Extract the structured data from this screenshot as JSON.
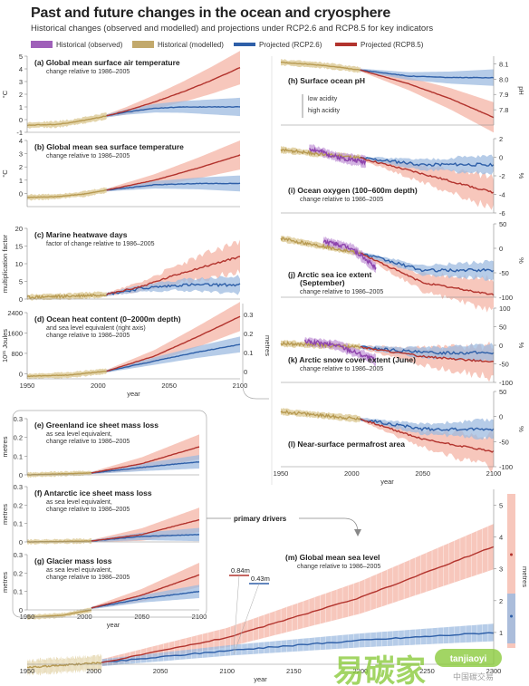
{
  "header": {
    "title": "Past and future changes in the ocean and cryosphere",
    "subtitle": "Historical changes (observed and modelled) and projections under RCP2.6 and RCP8.5 for key indicators"
  },
  "legend": [
    {
      "label": "Historical (observed)",
      "color": "#8e44ad"
    },
    {
      "label": "Historical (modelled)",
      "color": "#b79a52"
    },
    {
      "label": "Projected (RCP2.6)",
      "color": "#2e5fa8"
    },
    {
      "label": "Projected (RCP8.5)",
      "color": "#b2332d"
    }
  ],
  "colors": {
    "obs": "#8e44ad",
    "model": "#b79a52",
    "rcp26": "#2e5fa8",
    "rcp85": "#b2332d",
    "band26": "#9dbbe0",
    "band85": "#f4b4a6",
    "bandModel": "#d9c68d",
    "bandObs": "#c49ad8"
  },
  "labels": {
    "primary_drivers": "primary drivers",
    "val_084": "0.84m",
    "val_043": "0.43m",
    "watermark_cn": "易碳家",
    "watermark_en": "tanjiaoyi",
    "watermark_cn2": "中国碳交易"
  },
  "chart_data": [
    {
      "id": "a",
      "type": "line",
      "title": "(a)  Global mean surface air temperature",
      "subtitle": "change relative to 1986–2005",
      "ylabel": "°C",
      "xlim": [
        1950,
        2100
      ],
      "ylim": [
        -1,
        5
      ],
      "yticks": [
        -1,
        0,
        1,
        2,
        3,
        4,
        5
      ],
      "historical_modelled": {
        "x": [
          1950,
          1960,
          1970,
          1980,
          1990,
          2000,
          2006
        ],
        "y": [
          -0.45,
          -0.4,
          -0.38,
          -0.25,
          -0.05,
          0.15,
          0.3
        ]
      },
      "rcp26": {
        "x": [
          2006,
          2020,
          2040,
          2060,
          2080,
          2100
        ],
        "y": [
          0.3,
          0.6,
          0.9,
          1.0,
          1.0,
          1.0
        ]
      },
      "rcp85": {
        "x": [
          2006,
          2020,
          2040,
          2060,
          2080,
          2100
        ],
        "y": [
          0.3,
          0.7,
          1.4,
          2.2,
          3.1,
          4.1
        ]
      }
    },
    {
      "id": "b",
      "type": "line",
      "title": "(b)  Global mean sea surface temperature",
      "subtitle": "change relative to 1986–2005",
      "ylabel": "°C",
      "xlim": [
        1950,
        2100
      ],
      "ylim": [
        -1,
        4
      ],
      "yticks": [
        0,
        1,
        2,
        3,
        4
      ],
      "historical_modelled": {
        "x": [
          1950,
          1970,
          1990,
          2006
        ],
        "y": [
          -0.3,
          -0.25,
          -0.05,
          0.25
        ]
      },
      "rcp26": {
        "x": [
          2006,
          2040,
          2070,
          2100
        ],
        "y": [
          0.25,
          0.65,
          0.75,
          0.75
        ]
      },
      "rcp85": {
        "x": [
          2006,
          2040,
          2070,
          2100
        ],
        "y": [
          0.25,
          1.0,
          1.9,
          2.9
        ]
      }
    },
    {
      "id": "c",
      "type": "line",
      "title": "(c)  Marine heatwave days",
      "subtitle": "factor of change relative to 1986–2005",
      "ylabel": "multiplication factor",
      "xlim": [
        1950,
        2100
      ],
      "ylim": [
        0,
        20
      ],
      "yticks": [
        0,
        5,
        10,
        15,
        20
      ],
      "historical_modelled": {
        "x": [
          1950,
          1980,
          2006
        ],
        "y": [
          0.5,
          0.8,
          1.3
        ]
      },
      "rcp26": {
        "x": [
          2006,
          2030,
          2060,
          2100
        ],
        "y": [
          1.3,
          3,
          4,
          4
        ]
      },
      "rcp85": {
        "x": [
          2006,
          2030,
          2060,
          2100
        ],
        "y": [
          1.3,
          3.5,
          7.5,
          12
        ]
      }
    },
    {
      "id": "d",
      "type": "line",
      "title": "(d)  Ocean heat content (0–2000m depth)",
      "subtitle": "and sea level equivalent (right axis)",
      "subtitle2": "change relative to 1986–2005",
      "ylabel": "10²¹ Joules",
      "ylabel_right": "metres",
      "xlim": [
        1950,
        2100
      ],
      "ylim": [
        -200,
        2400
      ],
      "yticks": [
        0,
        800,
        1600,
        2400
      ],
      "yticks_right": [
        "0",
        "0.1",
        "0.2",
        "0.3"
      ],
      "xticks": [
        1950,
        2000,
        2050,
        2100
      ],
      "xlabel": "year",
      "historical_modelled": {
        "x": [
          1950,
          1980,
          2006
        ],
        "y": [
          -100,
          -50,
          100
        ]
      },
      "rcp26": {
        "x": [
          2006,
          2040,
          2070,
          2100
        ],
        "y": [
          100,
          500,
          850,
          1150
        ]
      },
      "rcp85": {
        "x": [
          2006,
          2040,
          2070,
          2100
        ],
        "y": [
          100,
          700,
          1450,
          2250
        ]
      }
    },
    {
      "id": "e",
      "type": "line",
      "title": "(e)  Greenland ice sheet mass loss",
      "subtitle": "as sea level equivalent,",
      "subtitle2": "change relative to 1986–2005",
      "ylabel": "metres",
      "xlim": [
        1950,
        2100
      ],
      "ylim": [
        0,
        0.3
      ],
      "yticks": [
        "0",
        "0.1",
        "0.2",
        "0.3"
      ],
      "historical_modelled": {
        "x": [
          1950,
          2006
        ],
        "y": [
          0,
          0.01
        ]
      },
      "rcp26": {
        "x": [
          2006,
          2050,
          2100
        ],
        "y": [
          0.01,
          0.04,
          0.07
        ]
      },
      "rcp85": {
        "x": [
          2006,
          2050,
          2100
        ],
        "y": [
          0.01,
          0.06,
          0.15
        ]
      }
    },
    {
      "id": "f",
      "type": "line",
      "title": "(f)  Antarctic ice sheet mass loss",
      "subtitle": "as sea level equivalent,",
      "subtitle2": "change relative to 1986–2005",
      "ylabel": "metres",
      "xlim": [
        1950,
        2100
      ],
      "ylim": [
        0,
        0.3
      ],
      "yticks": [
        "0",
        "0.1",
        "0.2",
        "0.3"
      ],
      "historical_modelled": {
        "x": [
          1950,
          2006
        ],
        "y": [
          0,
          0.005
        ]
      },
      "rcp26": {
        "x": [
          2006,
          2050,
          2100
        ],
        "y": [
          0.005,
          0.03,
          0.04
        ]
      },
      "rcp85": {
        "x": [
          2006,
          2050,
          2100
        ],
        "y": [
          0.005,
          0.04,
          0.12
        ]
      }
    },
    {
      "id": "g",
      "type": "line",
      "title": "(g)  Glacier mass loss",
      "subtitle": "as sea level equivalent,",
      "subtitle2": "change relative to 1986–2005",
      "ylabel": "metres",
      "xlim": [
        1950,
        2100
      ],
      "ylim": [
        0,
        0.3
      ],
      "yticks": [
        "0",
        "0.1",
        "0.2",
        "0.3"
      ],
      "xticks": [
        1950,
        2000,
        2050,
        2100
      ],
      "xlabel": "year",
      "historical_modelled": {
        "x": [
          1950,
          1980,
          2006
        ],
        "y": [
          -0.04,
          -0.03,
          0.0
        ]
      },
      "rcp26": {
        "x": [
          2006,
          2050,
          2100
        ],
        "y": [
          0.01,
          0.06,
          0.1
        ]
      },
      "rcp85": {
        "x": [
          2006,
          2050,
          2100
        ],
        "y": [
          0.01,
          0.08,
          0.19
        ]
      }
    },
    {
      "id": "h",
      "type": "line",
      "title": "(h)  Surface ocean pH",
      "ylabel_right": "pH",
      "annotation_top": "low acidity",
      "annotation_bottom": "high acidity",
      "xlim": [
        1950,
        2100
      ],
      "ylim": [
        7.7,
        8.15
      ],
      "yticks": [
        "7.8",
        "7.9",
        "8.0",
        "8.1"
      ],
      "historical_modelled": {
        "x": [
          1950,
          1980,
          2006
        ],
        "y": [
          8.11,
          8.09,
          8.06
        ]
      },
      "rcp26": {
        "x": [
          2006,
          2040,
          2070,
          2100
        ],
        "y": [
          8.06,
          8.02,
          8.01,
          8.01
        ]
      },
      "rcp85": {
        "x": [
          2006,
          2040,
          2070,
          2100
        ],
        "y": [
          8.06,
          7.97,
          7.87,
          7.75
        ]
      }
    },
    {
      "id": "i",
      "type": "line",
      "title": "(i)  Ocean oxygen (100–600m depth)",
      "subtitle": "change relative to 1986–2005",
      "ylabel_right": "%",
      "xlim": [
        1950,
        2100
      ],
      "ylim": [
        -6,
        2
      ],
      "yticks": [
        "-6",
        "-4",
        "-2",
        "0",
        "2"
      ],
      "historical_observed": {
        "x": [
          1970,
          1990,
          2010
        ],
        "y": [
          1,
          0,
          -0.5
        ]
      },
      "historical_modelled": {
        "x": [
          1950,
          2006
        ],
        "y": [
          0.8,
          -0.1
        ]
      },
      "rcp26": {
        "x": [
          2006,
          2050,
          2100
        ],
        "y": [
          -0.1,
          -0.8,
          -0.8
        ]
      },
      "rcp85": {
        "x": [
          2006,
          2050,
          2100
        ],
        "y": [
          -0.1,
          -1.8,
          -3.8
        ]
      }
    },
    {
      "id": "j",
      "type": "line",
      "title": "(j)  Arctic sea ice extent",
      "title2": "(September)",
      "subtitle": "change relative to 1986–2005",
      "ylabel_right": "%",
      "xlim": [
        1950,
        2100
      ],
      "ylim": [
        -100,
        50
      ],
      "yticks": [
        "-100",
        "-50",
        "0",
        "50"
      ],
      "historical_observed": {
        "x": [
          1980,
          2000,
          2017
        ],
        "y": [
          15,
          0,
          -40
        ]
      },
      "historical_modelled": {
        "x": [
          1950,
          2006
        ],
        "y": [
          20,
          -10
        ]
      },
      "rcp26": {
        "x": [
          2006,
          2050,
          2100
        ],
        "y": [
          -10,
          -45,
          -45
        ]
      },
      "rcp85": {
        "x": [
          2006,
          2050,
          2100
        ],
        "y": [
          -10,
          -70,
          -95
        ]
      }
    },
    {
      "id": "k",
      "type": "line",
      "title": "(k)  Arctic snow cover extent (June)",
      "subtitle": "change relative to 1986–2005",
      "ylabel_right": "%",
      "xlim": [
        1950,
        2100
      ],
      "ylim": [
        -100,
        100
      ],
      "yticks": [
        "-100",
        "-50",
        "0",
        "50",
        "100"
      ],
      "historical_observed": {
        "x": [
          1967,
          1990,
          2017
        ],
        "y": [
          10,
          0,
          -40
        ]
      },
      "historical_modelled": {
        "x": [
          1950,
          2006
        ],
        "y": [
          5,
          -5
        ]
      },
      "rcp26": {
        "x": [
          2006,
          2050,
          2100
        ],
        "y": [
          -5,
          -20,
          -20
        ]
      },
      "rcp85": {
        "x": [
          2006,
          2050,
          2100
        ],
        "y": [
          -5,
          -30,
          -45
        ]
      }
    },
    {
      "id": "l",
      "type": "line",
      "title": "(l)  Near-surface permafrost area",
      "ylabel_right": "%",
      "xlim": [
        1950,
        2100
      ],
      "ylim": [
        -100,
        50
      ],
      "yticks": [
        "-100",
        "-50",
        "0",
        "50"
      ],
      "xticks": [
        1950,
        2000,
        2050,
        2100
      ],
      "xlabel": "year",
      "historical_modelled": {
        "x": [
          1950,
          2006
        ],
        "y": [
          10,
          -5
        ]
      },
      "rcp26": {
        "x": [
          2006,
          2050,
          2100
        ],
        "y": [
          -5,
          -25,
          -25
        ]
      },
      "rcp85": {
        "x": [
          2006,
          2050,
          2100
        ],
        "y": [
          -5,
          -45,
          -70
        ]
      }
    },
    {
      "id": "m",
      "type": "line",
      "title": "(m)  Global mean sea level",
      "subtitle": "change relative to 1986–2005",
      "ylabel_right": "metres",
      "xlim": [
        1950,
        2300
      ],
      "ylim": [
        0,
        5.5
      ],
      "yticks": [
        "1",
        "2",
        "3",
        "4",
        "5"
      ],
      "xticks": [
        1950,
        2000,
        2050,
        2100,
        2150,
        2200,
        2250,
        2300
      ],
      "xlabel": "year",
      "historical_modelled": {
        "x": [
          1950,
          2006
        ],
        "y": [
          -0.1,
          0.05
        ]
      },
      "rcp26": {
        "x": [
          2006,
          2100,
          2200,
          2300
        ],
        "y": [
          0.05,
          0.43,
          0.75,
          1.0
        ]
      },
      "rcp85": {
        "x": [
          2006,
          2100,
          2200,
          2300
        ],
        "y": [
          0.05,
          0.84,
          2.1,
          3.7
        ]
      }
    }
  ]
}
